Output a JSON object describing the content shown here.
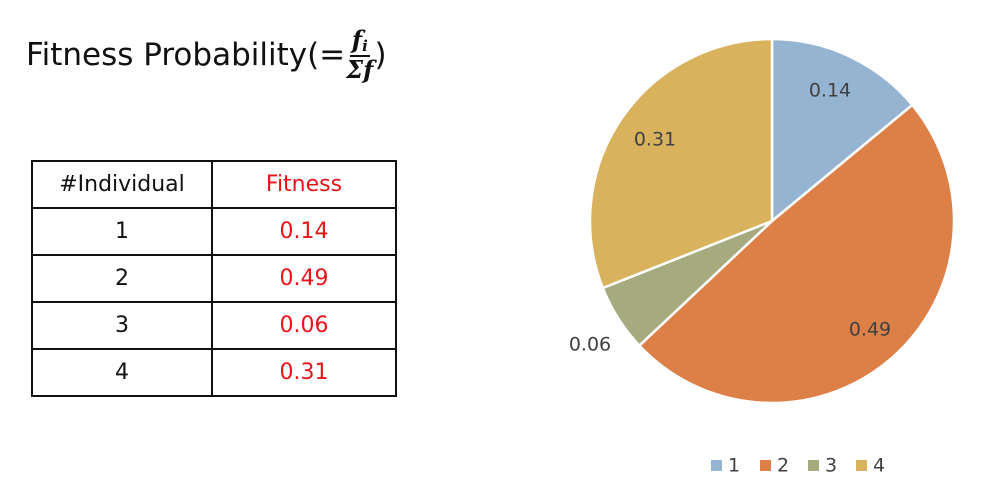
{
  "title": {
    "text": "Fitness Probability(=",
    "numerator": "f",
    "numerator_sub": "i",
    "denominator": "Σf",
    "close": ")"
  },
  "table": {
    "headers": [
      "#Individual",
      "Fitness"
    ],
    "rows": [
      [
        "1",
        "0.14"
      ],
      [
        "2",
        "0.49"
      ],
      [
        "3",
        "0.06"
      ],
      [
        "4",
        "0.31"
      ]
    ]
  },
  "chart_data": {
    "type": "pie",
    "categories": [
      "1",
      "2",
      "3",
      "4"
    ],
    "values": [
      0.14,
      0.49,
      0.06,
      0.31
    ],
    "data_labels": [
      "0.14",
      "0.49",
      "0.06",
      "0.31"
    ],
    "colors": [
      "#95b4d2",
      "#dd8048",
      "#a5ab7e",
      "#d9b25d"
    ],
    "start_angle": "12 o'clock",
    "direction": "clockwise",
    "legend": "bottom"
  }
}
